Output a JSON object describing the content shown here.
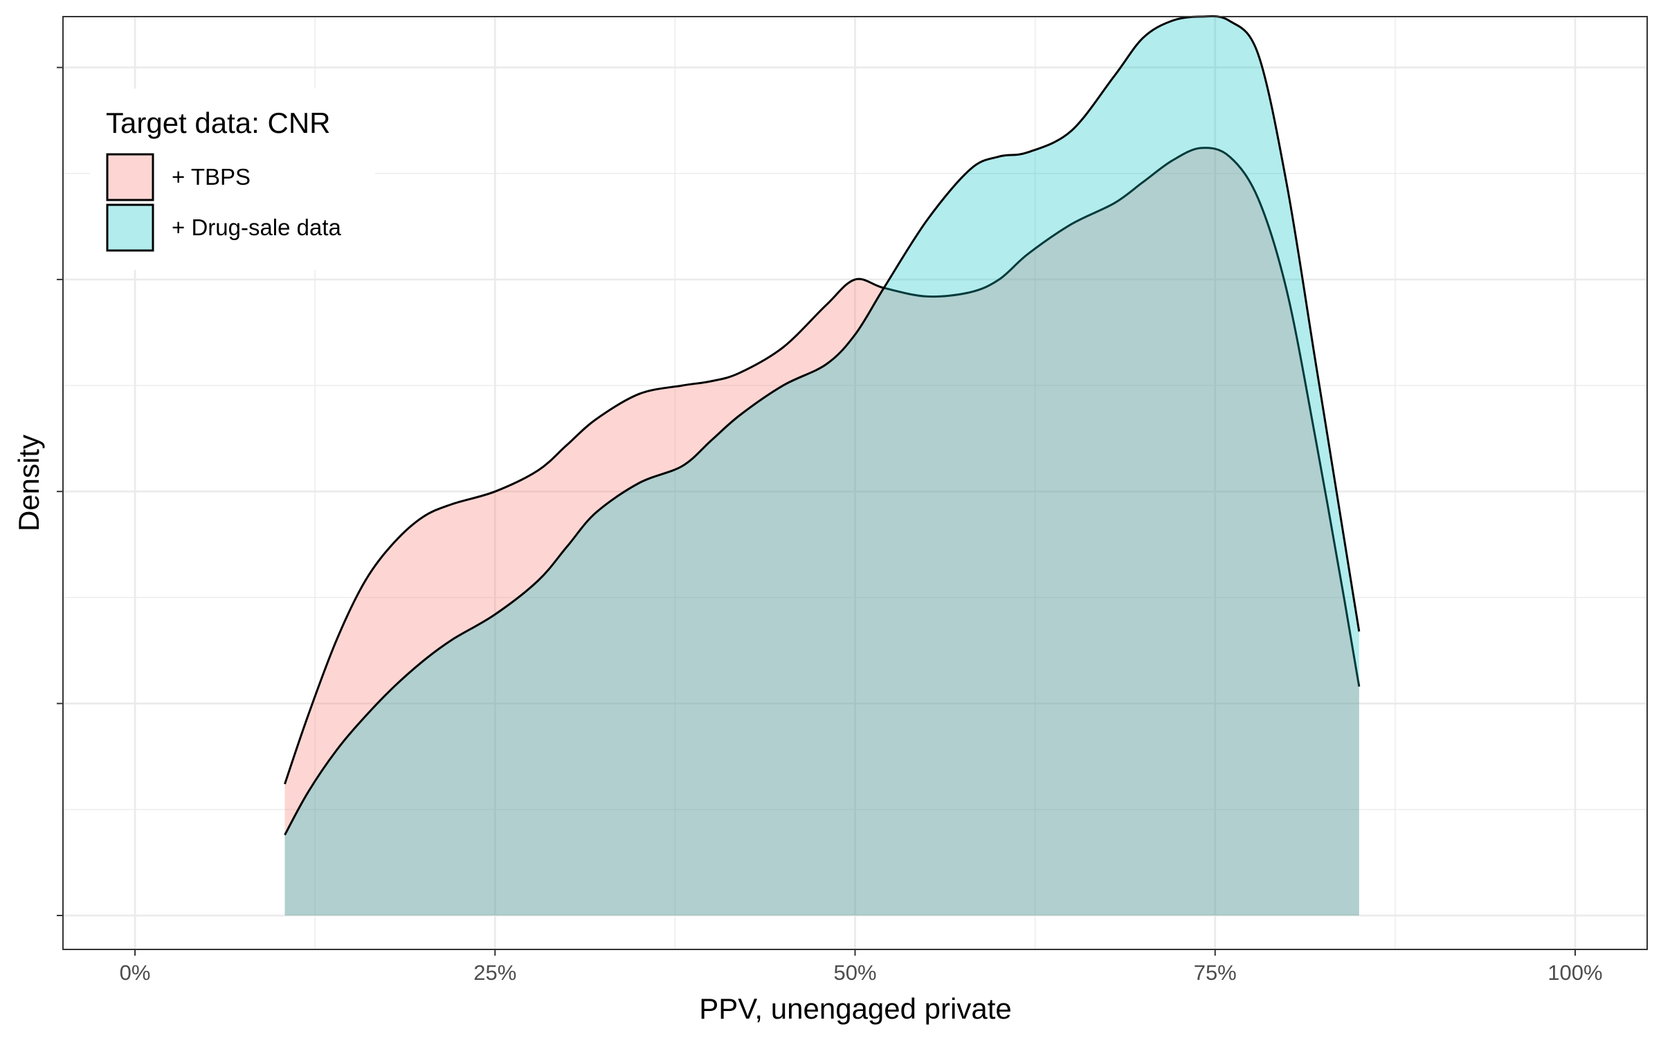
{
  "chart_data": {
    "type": "area",
    "subtype": "density",
    "title": "",
    "xlabel": "PPV, unengaged private",
    "ylabel": "Density",
    "xlim": [
      -0.05,
      1.05
    ],
    "ylim": [
      0.42,
      2.62
    ],
    "x_ticks": [
      0,
      0.25,
      0.5,
      0.75,
      1.0
    ],
    "x_tick_labels": [
      "0%",
      "25%",
      "50%",
      "75%",
      "100%"
    ],
    "y_ticks": [
      0.5,
      1.0,
      1.5,
      2.0,
      2.5
    ],
    "y_tick_labels_shown": false,
    "grid": true,
    "legend": {
      "title": "Target data: CNR",
      "placement": "top-left",
      "entries": [
        "+ TBPS",
        "+ Drug-sale data"
      ]
    },
    "series": [
      {
        "name": "+ TBPS",
        "color": "#F8766D",
        "fill_opacity": 0.3,
        "x": [
          0.104,
          0.12,
          0.14,
          0.16,
          0.18,
          0.2,
          0.22,
          0.25,
          0.28,
          0.3,
          0.32,
          0.35,
          0.38,
          0.4,
          0.42,
          0.45,
          0.48,
          0.5,
          0.52,
          0.55,
          0.58,
          0.6,
          0.62,
          0.65,
          0.68,
          0.7,
          0.72,
          0.74,
          0.76,
          0.78,
          0.8,
          0.82,
          0.84,
          0.85
        ],
        "values": [
          0.81,
          0.97,
          1.15,
          1.29,
          1.38,
          1.44,
          1.47,
          1.5,
          1.55,
          1.61,
          1.67,
          1.73,
          1.75,
          1.76,
          1.78,
          1.84,
          1.94,
          2.0,
          1.98,
          1.96,
          1.97,
          2.0,
          2.06,
          2.13,
          2.18,
          2.23,
          2.28,
          2.31,
          2.29,
          2.19,
          1.97,
          1.62,
          1.24,
          1.04
        ]
      },
      {
        "name": "+ Drug-sale data",
        "color": "#00BFC4",
        "fill_opacity": 0.3,
        "x": [
          0.104,
          0.12,
          0.14,
          0.16,
          0.18,
          0.2,
          0.22,
          0.25,
          0.28,
          0.3,
          0.32,
          0.35,
          0.38,
          0.4,
          0.42,
          0.45,
          0.48,
          0.5,
          0.52,
          0.55,
          0.58,
          0.6,
          0.62,
          0.65,
          0.68,
          0.7,
          0.72,
          0.74,
          0.76,
          0.78,
          0.8,
          0.82,
          0.84,
          0.85
        ],
        "values": [
          0.69,
          0.79,
          0.89,
          0.97,
          1.04,
          1.1,
          1.15,
          1.21,
          1.29,
          1.37,
          1.45,
          1.52,
          1.56,
          1.62,
          1.68,
          1.75,
          1.8,
          1.87,
          1.98,
          2.14,
          2.26,
          2.29,
          2.3,
          2.35,
          2.48,
          2.57,
          2.61,
          2.62,
          2.61,
          2.53,
          2.22,
          1.8,
          1.38,
          1.17
        ]
      }
    ]
  }
}
